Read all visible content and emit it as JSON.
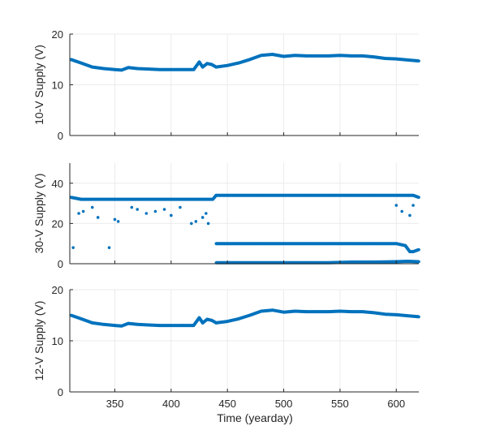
{
  "chart_data": [
    {
      "type": "scatter",
      "ylabel": "10-V Supply (V)",
      "xlabel": "",
      "xlim": [
        310,
        620
      ],
      "ylim": [
        0,
        20
      ],
      "xticks": [
        350,
        400,
        450,
        500,
        550,
        600
      ],
      "yticks": [
        0,
        10,
        20
      ],
      "grid": true,
      "color": "#0072BD",
      "series": [
        {
          "x": [
            311,
            320,
            330,
            340,
            350,
            356,
            362,
            370,
            380,
            390,
            400,
            410,
            420,
            425,
            428,
            432,
            436,
            440,
            450,
            460,
            470,
            480,
            490,
            500,
            510,
            520,
            530,
            540,
            550,
            560,
            570,
            580,
            590,
            600,
            610,
            620
          ],
          "y": [
            15.0,
            14.3,
            13.5,
            13.2,
            13.0,
            12.9,
            13.4,
            13.2,
            13.1,
            13.0,
            13.0,
            13.0,
            13.0,
            14.5,
            13.5,
            14.2,
            14.0,
            13.5,
            13.8,
            14.3,
            15.0,
            15.8,
            16.0,
            15.6,
            15.8,
            15.7,
            15.7,
            15.7,
            15.8,
            15.7,
            15.7,
            15.5,
            15.2,
            15.1,
            14.9,
            14.7
          ]
        }
      ]
    },
    {
      "type": "scatter",
      "ylabel": "30-V Supply (V)",
      "xlabel": "",
      "xlim": [
        310,
        620
      ],
      "ylim": [
        0,
        50
      ],
      "xticks": [
        350,
        400,
        450,
        500,
        550,
        600
      ],
      "yticks": [
        0,
        20,
        40
      ],
      "grid": true,
      "color": "#0072BD",
      "series": [
        {
          "x": [
            311,
            320,
            330,
            340,
            350,
            356,
            362,
            370,
            380,
            390,
            400,
            410,
            420,
            430,
            437,
            440,
            460,
            480,
            500,
            520,
            540,
            560,
            580,
            600,
            610,
            615,
            620
          ],
          "y": [
            33,
            32,
            32,
            32,
            32,
            32,
            32,
            32,
            32,
            32,
            32,
            32,
            32,
            32,
            32,
            34,
            34,
            34,
            34,
            34,
            34,
            34,
            34,
            34,
            34,
            34,
            33
          ]
        },
        {
          "x": [
            313,
            318,
            322,
            330,
            335,
            345,
            350,
            353,
            365,
            370,
            378,
            386,
            394,
            400,
            408,
            418,
            422,
            428,
            431,
            433,
            600,
            605,
            612,
            615
          ],
          "y": [
            8,
            25,
            26,
            28,
            23,
            8,
            22,
            21,
            28,
            27,
            25,
            26,
            27,
            24,
            28,
            20,
            21,
            23,
            25,
            20,
            29,
            26,
            24,
            29
          ]
        },
        {
          "x": [
            440,
            460,
            480,
            500,
            520,
            540,
            560,
            580,
            600,
            608,
            612,
            615,
            620
          ],
          "y": [
            10,
            10,
            10,
            10,
            10,
            10,
            10,
            10,
            10,
            9,
            6,
            6,
            7
          ]
        },
        {
          "x": [
            440,
            460,
            480,
            500,
            520,
            540,
            560,
            580,
            600,
            610,
            620
          ],
          "y": [
            0.5,
            0.5,
            0.5,
            0.5,
            0.5,
            0.5,
            0.8,
            0.8,
            1.0,
            1.2,
            1.0
          ]
        }
      ]
    },
    {
      "type": "scatter",
      "ylabel": "12-V Supply (V)",
      "xlabel": "Time (yearday)",
      "xlim": [
        310,
        620
      ],
      "ylim": [
        0,
        20
      ],
      "xticks": [
        350,
        400,
        450,
        500,
        550,
        600
      ],
      "yticks": [
        0,
        10,
        20
      ],
      "grid": true,
      "color": "#0072BD",
      "series": [
        {
          "x": [
            311,
            320,
            330,
            340,
            350,
            356,
            362,
            370,
            380,
            390,
            400,
            410,
            420,
            425,
            428,
            432,
            436,
            440,
            450,
            460,
            470,
            480,
            490,
            500,
            510,
            520,
            530,
            540,
            550,
            560,
            570,
            580,
            590,
            600,
            610,
            620
          ],
          "y": [
            15.0,
            14.3,
            13.5,
            13.2,
            13.0,
            12.9,
            13.4,
            13.2,
            13.1,
            13.0,
            13.0,
            13.0,
            13.0,
            14.5,
            13.5,
            14.2,
            14.0,
            13.5,
            13.8,
            14.3,
            15.0,
            15.8,
            16.0,
            15.6,
            15.8,
            15.7,
            15.7,
            15.7,
            15.8,
            15.7,
            15.7,
            15.5,
            15.2,
            15.1,
            14.9,
            14.7
          ]
        }
      ]
    }
  ]
}
